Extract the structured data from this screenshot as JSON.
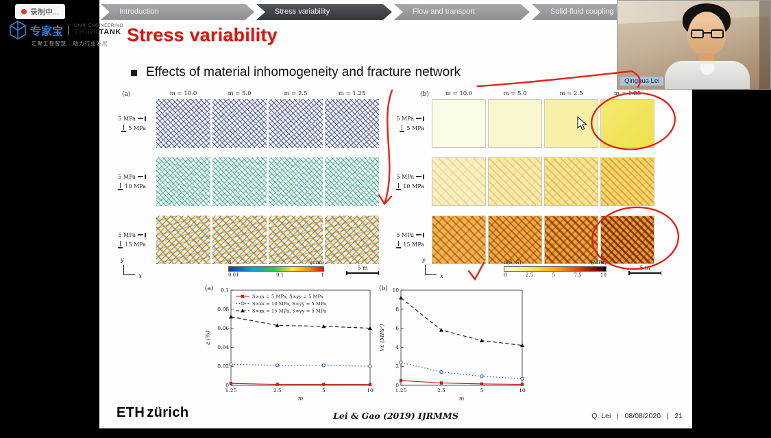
{
  "recording": {
    "label": "录制中..."
  },
  "logo": {
    "brand": "专家宝",
    "divider": "|",
    "line1": "CIVIL ENGINEERING",
    "line2": "THINKTANK",
    "tagline": "汇聚工程智慧 · 助力行业发展"
  },
  "nav": {
    "items": [
      {
        "label": "Introduction",
        "active": false
      },
      {
        "label": "Stress variability",
        "active": true
      },
      {
        "label": "Flow and transport",
        "active": false
      },
      {
        "label": "Solid-fluid coupling",
        "active": false
      }
    ]
  },
  "webcam": {
    "name": "Qinghua Lei"
  },
  "slide": {
    "title": "Stress variability",
    "bullet": "Effects of material inhomogeneity and fracture network",
    "row_labels": [
      {
        "top": "5 MPa",
        "bottom": "5 MPa"
      },
      {
        "top": "5 MPa",
        "bottom": "10 MPa"
      },
      {
        "top": "5 MPa",
        "bottom": "15 MPa"
      }
    ],
    "panelA": {
      "tag": "(a)",
      "columns": [
        "m = 10.0",
        "m = 5.0",
        "m = 2.5",
        "m = 1.25"
      ],
      "colorbar": {
        "label": "δ̄",
        "unit": "(mm)",
        "ticks": [
          "0.01",
          "0.1",
          "1"
        ]
      },
      "scale": "5 m",
      "axis": {
        "x": "x",
        "y": "y"
      }
    },
    "panelB": {
      "tag": "(b)",
      "columns": [
        "m = 10.0",
        "m = 5.0",
        "m = 2.5",
        "m = 1.25"
      ],
      "colorbar": {
        "label": "d(S̄, S̃)",
        "unit": "(MPa)",
        "ticks": [
          "0",
          "2.5",
          "5",
          "7.5",
          "10"
        ]
      },
      "scale": "5 m",
      "axis": {
        "x": "x",
        "y": "y"
      }
    },
    "footer": {
      "logo_eth": "ETH",
      "logo_city": "zürich",
      "citation": "Lei & Gao (2019) IJRMMS",
      "credit": "Q. Lei   |   08/08/2020   |   21"
    }
  },
  "chart_data": [
    {
      "type": "line",
      "tag": "(a)",
      "x": [
        1.25,
        2.5,
        5,
        10
      ],
      "x_scale": "log",
      "xlabel": "m",
      "ylabel": "ε (%)",
      "ylim": [
        0,
        0.1
      ],
      "yticks": [
        0,
        0.02,
        0.04,
        0.06,
        0.08,
        0.1
      ],
      "legend": true,
      "legend_position": "top",
      "series": [
        {
          "name": "S∞xx = 5 MPa, S∞yy = 5 MPa",
          "color": "#c81e14",
          "style": "solid",
          "marker": "square",
          "values": [
            0.002,
            0.001,
            0.001,
            0.001
          ]
        },
        {
          "name": "S∞xx = 10 MPa, S∞yy = 5 MPa",
          "color": "#2b4bc8",
          "style": "dotted",
          "marker": "circle",
          "values": [
            0.022,
            0.021,
            0.021,
            0.02
          ]
        },
        {
          "name": "S∞xx = 15 MPa, S∞yy = 5 MPa",
          "color": "#111111",
          "style": "dashed",
          "marker": "triangle",
          "values": [
            0.072,
            0.063,
            0.062,
            0.06
          ]
        }
      ]
    },
    {
      "type": "line",
      "tag": "(b)",
      "x": [
        1.25,
        2.5,
        5,
        10
      ],
      "x_scale": "log",
      "xlabel": "m",
      "ylabel": "Vε (MPa²)",
      "ylim": [
        0,
        10
      ],
      "yticks": [
        0,
        2,
        4,
        6,
        8,
        10
      ],
      "legend": false,
      "series": [
        {
          "name": "S∞xx = 5 MPa, S∞yy = 5 MPa",
          "color": "#c81e14",
          "style": "solid",
          "marker": "square",
          "values": [
            0.5,
            0.25,
            0.15,
            0.1
          ]
        },
        {
          "name": "S∞xx = 10 MPa, S∞yy = 5 MPa",
          "color": "#2b4bc8",
          "style": "dotted",
          "marker": "circle",
          "values": [
            2.4,
            1.4,
            0.95,
            0.7
          ]
        },
        {
          "name": "S∞xx = 15 MPa, S∞yy = 5 MPa",
          "color": "#111111",
          "style": "dashed",
          "marker": "triangle",
          "values": [
            9.2,
            5.8,
            4.7,
            4.2
          ]
        }
      ]
    }
  ],
  "colors": {
    "title": "#d11a12",
    "annotation": "#e02418",
    "nav_active": "#44474c",
    "nav_inactive": "#9b9ea1"
  }
}
